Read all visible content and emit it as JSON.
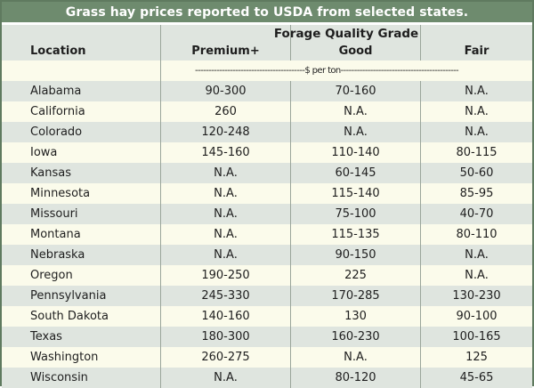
{
  "title": "Grass hay prices reported to USDA from selected states.",
  "header": {
    "location": "Location",
    "grade_group": "Forage Quality Grade",
    "premium": "Premium+",
    "good": "Good",
    "fair": "Fair",
    "units": "-----------------------------------------$ per ton--------------------------------------------"
  },
  "rows": [
    {
      "location": "Alabama",
      "premium": "90-300",
      "good": "70-160",
      "fair": "N.A."
    },
    {
      "location": "California",
      "premium": "260",
      "good": "N.A.",
      "fair": "N.A."
    },
    {
      "location": "Colorado",
      "premium": "120-248",
      "good": "N.A.",
      "fair": "N.A."
    },
    {
      "location": "Iowa",
      "premium": "145-160",
      "good": "110-140",
      "fair": "80-115"
    },
    {
      "location": "Kansas",
      "premium": "N.A.",
      "good": "60-145",
      "fair": "50-60"
    },
    {
      "location": "Minnesota",
      "premium": "N.A.",
      "good": "115-140",
      "fair": "85-95"
    },
    {
      "location": "Missouri",
      "premium": "N.A.",
      "good": "75-100",
      "fair": "40-70"
    },
    {
      "location": "Montana",
      "premium": "N.A.",
      "good": "115-135",
      "fair": "80-110"
    },
    {
      "location": "Nebraska",
      "premium": "N.A.",
      "good": "90-150",
      "fair": "N.A."
    },
    {
      "location": "Oregon",
      "premium": "190-250",
      "good": "225",
      "fair": "N.A."
    },
    {
      "location": "Pennsylvania",
      "premium": "245-330",
      "good": "170-285",
      "fair": "130-230"
    },
    {
      "location": "South Dakota",
      "premium": "140-160",
      "good": "130",
      "fair": "90-100"
    },
    {
      "location": "Texas",
      "premium": "180-300",
      "good": "160-230",
      "fair": "100-165"
    },
    {
      "location": "Washington",
      "premium": "260-275",
      "good": "N.A.",
      "fair": "125"
    },
    {
      "location": "Wisconsin",
      "premium": "N.A.",
      "good": "80-120",
      "fair": "45-65"
    }
  ]
}
